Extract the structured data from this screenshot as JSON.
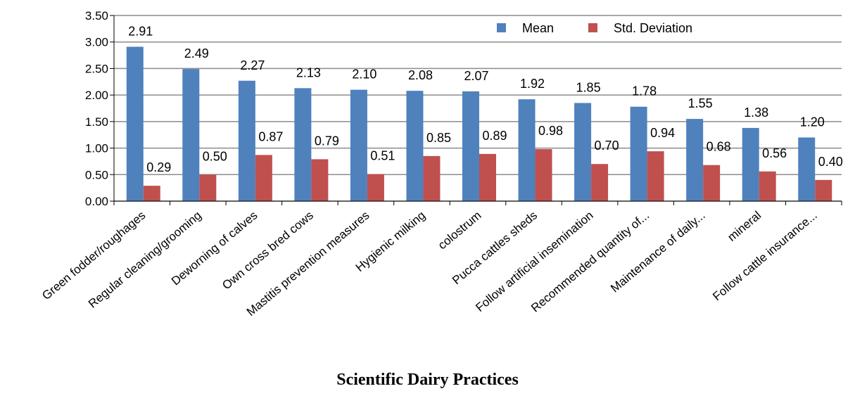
{
  "chart_data": {
    "type": "bar",
    "xlabel": "Scientific Dairy Practices",
    "ylim": [
      0,
      3.5
    ],
    "yticks": [
      "0.00",
      "0.50",
      "1.00",
      "1.50",
      "2.00",
      "2.50",
      "3.00",
      "3.50"
    ],
    "grid": true,
    "legend_position": "top-right",
    "categories": [
      "Green fodder/roughages",
      "Regular cleaning/grooming",
      "Deworning of calves",
      "Own cross bred cows",
      "Mastitis prevention measures",
      "Hygienic milking",
      "colostrum",
      "Pucca cattles sheds",
      "Follow artificial insemination",
      "Recommended quantity of...",
      "Maintenance of daily...",
      "mineral",
      "Follow cattle insurance..."
    ],
    "series": [
      {
        "name": "Mean",
        "color": "#4f81bd",
        "values": [
          2.91,
          2.49,
          2.27,
          2.13,
          2.1,
          2.08,
          2.07,
          1.92,
          1.85,
          1.78,
          1.55,
          1.38,
          1.2
        ],
        "labels": [
          "2.91",
          "2.49",
          "2.27",
          "2.13",
          "2.10",
          "2.08",
          "2.07",
          "1.92",
          "1.85",
          "1.78",
          "1.55",
          "1.38",
          "1.20"
        ]
      },
      {
        "name": "Std. Deviation",
        "color": "#c0504d",
        "values": [
          0.29,
          0.5,
          0.87,
          0.79,
          0.51,
          0.85,
          0.89,
          0.98,
          0.7,
          0.94,
          0.68,
          0.56,
          0.4
        ],
        "labels": [
          "0.29",
          "0.50",
          "0.87",
          "0.79",
          "0.51",
          "0.85",
          "0.89",
          "0.98",
          "0.70",
          "0.94",
          "0.68",
          "0.56",
          "0.40"
        ]
      }
    ]
  }
}
